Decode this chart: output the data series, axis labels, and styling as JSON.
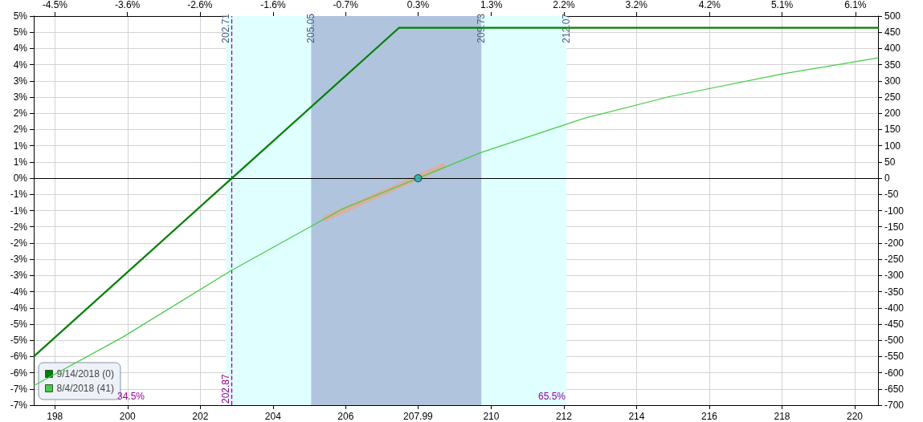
{
  "chart_data": {
    "type": "line",
    "xlim": [
      197.42,
      220.64
    ],
    "xticks": [
      198,
      200,
      202,
      204,
      206,
      207.99,
      210,
      212,
      214,
      216,
      218,
      220
    ],
    "x2lim": [
      -4.79,
      6.39
    ],
    "x2ticks": [
      {
        "value": -4.51,
        "label": "-4.5%"
      },
      {
        "value": -3.55,
        "label": "-3.6%"
      },
      {
        "value": -2.59,
        "label": "-2.6%"
      },
      {
        "value": -1.62,
        "label": "-1.6%"
      },
      {
        "value": -0.66,
        "label": "-0.7%"
      },
      {
        "value": 0.3,
        "label": "0.3%"
      },
      {
        "value": 1.27,
        "label": "1.3%"
      },
      {
        "value": 2.23,
        "label": "2.2%"
      },
      {
        "value": 3.19,
        "label": "3.2%"
      },
      {
        "value": 4.16,
        "label": "4.2%"
      },
      {
        "value": 5.12,
        "label": "5.1%"
      },
      {
        "value": 6.09,
        "label": "6.1%"
      }
    ],
    "ylim": [
      -7.14,
      5.1
    ],
    "yticks": [
      {
        "value": 5.1,
        "label": "5%"
      },
      {
        "value": 4.59,
        "label": "5%"
      },
      {
        "value": 4.08,
        "label": "4%"
      },
      {
        "value": 3.57,
        "label": "4%"
      },
      {
        "value": 3.06,
        "label": "3%"
      },
      {
        "value": 2.55,
        "label": "3%"
      },
      {
        "value": 2.04,
        "label": "2%"
      },
      {
        "value": 1.53,
        "label": "2%"
      },
      {
        "value": 1.02,
        "label": "1%"
      },
      {
        "value": 0.51,
        "label": "1%"
      },
      {
        "value": 0,
        "label": "0%"
      },
      {
        "value": -0.51,
        "label": "-1%"
      },
      {
        "value": -1.02,
        "label": "-1%"
      },
      {
        "value": -1.53,
        "label": "-2%"
      },
      {
        "value": -2.04,
        "label": "-2%"
      },
      {
        "value": -2.55,
        "label": "-3%"
      },
      {
        "value": -3.06,
        "label": "-3%"
      },
      {
        "value": -3.57,
        "label": "-4%"
      },
      {
        "value": -4.08,
        "label": "-4%"
      },
      {
        "value": -4.59,
        "label": "-5%"
      },
      {
        "value": -5.1,
        "label": "-5%"
      },
      {
        "value": -5.61,
        "label": "-6%"
      },
      {
        "value": -6.12,
        "label": "-6%"
      },
      {
        "value": -6.63,
        "label": "-7%"
      },
      {
        "value": -7.14,
        "label": "-7%"
      }
    ],
    "y2lim": [
      -700,
      500
    ],
    "y2ticks": [
      500,
      450,
      400,
      350,
      300,
      250,
      200,
      150,
      100,
      50,
      0,
      -50,
      -100,
      -150,
      -200,
      -250,
      -300,
      -350,
      -400,
      -450,
      -500,
      -550,
      -600,
      -650,
      -700
    ],
    "grid": true,
    "legend": "bottom left",
    "marker": "none",
    "line_style": "solid",
    "series": [
      {
        "name": "9/14/2018 (0)",
        "color": "#008000",
        "axis": "y2",
        "x": [
          197.42,
          202.87,
          207.47,
          220.64
        ],
        "values": [
          -550,
          0,
          464,
          464
        ]
      },
      {
        "name": "8/4/2018 (41)",
        "color": "#44cc44",
        "axis": "y2",
        "x": [
          197.42,
          199.87,
          202.82,
          205.93,
          207.99,
          209.72,
          212.6,
          214.92,
          217.98,
          220.64
        ],
        "values": [
          -640,
          -490,
          -287,
          -94,
          0,
          79,
          186,
          252,
          321,
          371
        ]
      },
      {
        "type": "line",
        "color": "#e8a890",
        "axis": "y2",
        "x": [
          205.44,
          208.67
        ],
        "values": [
          -124,
          37
        ]
      },
      {
        "type": "scatter",
        "color": "#20b0b8",
        "axis": "y2",
        "marker": "circle",
        "x": [
          207.99
        ],
        "values": [
          0
        ]
      }
    ],
    "bands": [
      {
        "axis": "x",
        "from": 202.71,
        "to": 212.07,
        "color": "#e0ffff"
      },
      {
        "axis": "x",
        "from": 205.05,
        "to": 209.73,
        "color": "#b0c4de"
      }
    ],
    "ref_lines": [
      {
        "axis": "x",
        "value": 202.87,
        "label": "202.87",
        "color": "#990099",
        "line_style": "dashed"
      },
      {
        "axis": "y",
        "value": 0,
        "color": "#000000",
        "line_style": "solid"
      }
    ],
    "annotations": [
      {
        "text": "202.71",
        "x": 202.71,
        "y": 5.0
      },
      {
        "text": "205.05",
        "x": 205.05,
        "y": 5.0
      },
      {
        "text": "209.73",
        "x": 209.73,
        "y": 5.0
      },
      {
        "text": "212.07",
        "x": 212.07,
        "y": 5.0
      },
      "34.5%",
      "65.5%"
    ]
  }
}
